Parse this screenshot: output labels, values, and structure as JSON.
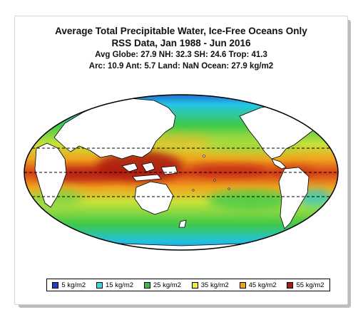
{
  "title": {
    "line1": "Average Total Precipitable Water, Ice-Free Oceans Only",
    "line2": "RSS Data, Jan 1988 - Jun 2016",
    "line3": "Avg Globe: 27.9  NH: 32.3  SH: 24.6  Trop: 41.3",
    "line4": "Arc: 10.9  Ant: 5.7  Land: NaN Ocean: 27.9 kg/m2"
  },
  "legend": [
    {
      "label": "5 kg/m2",
      "color": "#1f3fc6"
    },
    {
      "label": "15 kg/m2",
      "color": "#3fd4e0"
    },
    {
      "label": "25 kg/m2",
      "color": "#3cb84a"
    },
    {
      "label": "35 kg/m2",
      "color": "#f2ee3a"
    },
    {
      "label": "45 kg/m2",
      "color": "#f2a01c"
    },
    {
      "label": "55 kg/m2",
      "color": "#a41e12"
    }
  ],
  "map": {
    "projection": "Mollweide",
    "central_longitude": 180,
    "dashed_latitudes": [
      20,
      0,
      -20
    ],
    "land_color": "#ffffff",
    "coastline_color": "#000000"
  }
}
